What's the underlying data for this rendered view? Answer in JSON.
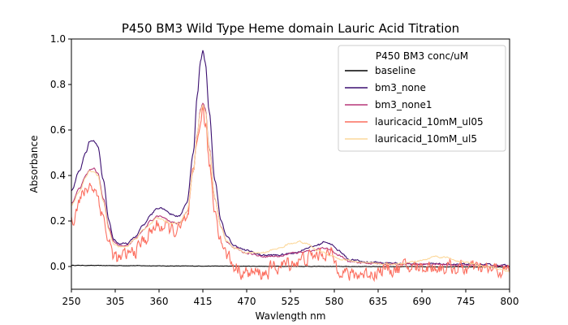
{
  "chart_data": {
    "type": "line",
    "title": "P450 BM3 Wild Type Heme domain Lauric Acid Titration",
    "xlabel": "Wavlength nm",
    "ylabel": "Absorbance",
    "xlim": [
      250,
      800
    ],
    "ylim": [
      -0.1,
      1.0
    ],
    "xticks": [
      "250",
      "305",
      "360",
      "415",
      "470",
      "525",
      "580",
      "635",
      "690",
      "745",
      "800"
    ],
    "yticks": [
      "0.0",
      "0.2",
      "0.4",
      "0.6",
      "0.8",
      "1.0"
    ],
    "legend": {
      "title": "P450 BM3 conc/uM",
      "placement": "top-right"
    },
    "series": [
      {
        "name": "baseline",
        "color": "#000000",
        "noise": 0.001,
        "points": [
          [
            250,
            0.005
          ],
          [
            300,
            0.004
          ],
          [
            400,
            0.002
          ],
          [
            500,
            0.001
          ],
          [
            600,
            0.0
          ],
          [
            700,
            -0.001
          ],
          [
            800,
            -0.002
          ]
        ]
      },
      {
        "name": "bm3_none",
        "color": "#3b0f70",
        "noise": 0.004,
        "points": [
          [
            250,
            0.33
          ],
          [
            260,
            0.42
          ],
          [
            268,
            0.5
          ],
          [
            273,
            0.55
          ],
          [
            278,
            0.55
          ],
          [
            283,
            0.53
          ],
          [
            290,
            0.38
          ],
          [
            297,
            0.2
          ],
          [
            303,
            0.12
          ],
          [
            310,
            0.1
          ],
          [
            320,
            0.1
          ],
          [
            330,
            0.13
          ],
          [
            340,
            0.18
          ],
          [
            350,
            0.23
          ],
          [
            357,
            0.255
          ],
          [
            362,
            0.26
          ],
          [
            368,
            0.25
          ],
          [
            375,
            0.23
          ],
          [
            385,
            0.22
          ],
          [
            395,
            0.28
          ],
          [
            403,
            0.5
          ],
          [
            408,
            0.75
          ],
          [
            412,
            0.9
          ],
          [
            415,
            0.95
          ],
          [
            418,
            0.9
          ],
          [
            423,
            0.68
          ],
          [
            430,
            0.38
          ],
          [
            438,
            0.2
          ],
          [
            445,
            0.13
          ],
          [
            455,
            0.09
          ],
          [
            470,
            0.07
          ],
          [
            490,
            0.05
          ],
          [
            510,
            0.05
          ],
          [
            530,
            0.06
          ],
          [
            550,
            0.085
          ],
          [
            560,
            0.095
          ],
          [
            568,
            0.11
          ],
          [
            575,
            0.1
          ],
          [
            585,
            0.07
          ],
          [
            600,
            0.03
          ],
          [
            620,
            0.02
          ],
          [
            650,
            0.015
          ],
          [
            680,
            0.012
          ],
          [
            720,
            0.01
          ],
          [
            760,
            0.008
          ],
          [
            800,
            0.005
          ]
        ]
      },
      {
        "name": "bm3_none1",
        "color": "#b73779",
        "noise": 0.004,
        "points": [
          [
            250,
            0.28
          ],
          [
            260,
            0.34
          ],
          [
            268,
            0.4
          ],
          [
            273,
            0.425
          ],
          [
            278,
            0.43
          ],
          [
            283,
            0.41
          ],
          [
            290,
            0.3
          ],
          [
            297,
            0.17
          ],
          [
            303,
            0.11
          ],
          [
            310,
            0.09
          ],
          [
            320,
            0.09
          ],
          [
            330,
            0.12
          ],
          [
            340,
            0.16
          ],
          [
            350,
            0.2
          ],
          [
            357,
            0.22
          ],
          [
            362,
            0.22
          ],
          [
            368,
            0.21
          ],
          [
            375,
            0.195
          ],
          [
            385,
            0.19
          ],
          [
            395,
            0.24
          ],
          [
            403,
            0.42
          ],
          [
            408,
            0.58
          ],
          [
            412,
            0.69
          ],
          [
            415,
            0.72
          ],
          [
            418,
            0.69
          ],
          [
            423,
            0.52
          ],
          [
            430,
            0.3
          ],
          [
            438,
            0.17
          ],
          [
            445,
            0.11
          ],
          [
            455,
            0.08
          ],
          [
            470,
            0.06
          ],
          [
            490,
            0.045
          ],
          [
            510,
            0.045
          ],
          [
            530,
            0.06
          ],
          [
            550,
            0.07
          ],
          [
            568,
            0.08
          ],
          [
            575,
            0.075
          ],
          [
            585,
            0.05
          ],
          [
            600,
            0.02
          ],
          [
            620,
            0.015
          ],
          [
            650,
            0.01
          ],
          [
            700,
            0.01
          ],
          [
            750,
            0.005
          ],
          [
            800,
            0.0
          ]
        ]
      },
      {
        "name": "lauricacid_10mM_ul05",
        "color": "#fc6e5f",
        "noise": 0.035,
        "points": [
          [
            250,
            0.2
          ],
          [
            260,
            0.29
          ],
          [
            268,
            0.33
          ],
          [
            273,
            0.36
          ],
          [
            278,
            0.35
          ],
          [
            283,
            0.31
          ],
          [
            290,
            0.22
          ],
          [
            297,
            0.1
          ],
          [
            303,
            0.05
          ],
          [
            310,
            0.03
          ],
          [
            320,
            0.05
          ],
          [
            330,
            0.07
          ],
          [
            340,
            0.11
          ],
          [
            350,
            0.15
          ],
          [
            357,
            0.18
          ],
          [
            362,
            0.18
          ],
          [
            368,
            0.17
          ],
          [
            375,
            0.16
          ],
          [
            385,
            0.16
          ],
          [
            395,
            0.2
          ],
          [
            403,
            0.39
          ],
          [
            408,
            0.55
          ],
          [
            412,
            0.65
          ],
          [
            415,
            0.68
          ],
          [
            418,
            0.63
          ],
          [
            423,
            0.45
          ],
          [
            430,
            0.25
          ],
          [
            438,
            0.12
          ],
          [
            445,
            0.05
          ],
          [
            455,
            0.0
          ],
          [
            470,
            -0.03
          ],
          [
            490,
            -0.03
          ],
          [
            510,
            0.0
          ],
          [
            530,
            0.02
          ],
          [
            550,
            0.04
          ],
          [
            568,
            0.06
          ],
          [
            575,
            0.05
          ],
          [
            585,
            0.0
          ],
          [
            600,
            -0.04
          ],
          [
            620,
            -0.03
          ],
          [
            650,
            -0.01
          ],
          [
            700,
            0.0
          ],
          [
            750,
            -0.01
          ],
          [
            800,
            -0.02
          ]
        ]
      },
      {
        "name": "lauricacid_10mM_ul5",
        "color": "#fcd89b",
        "noise": 0.004,
        "points": [
          [
            250,
            0.27
          ],
          [
            260,
            0.33
          ],
          [
            268,
            0.39
          ],
          [
            273,
            0.42
          ],
          [
            278,
            0.42
          ],
          [
            283,
            0.4
          ],
          [
            290,
            0.29
          ],
          [
            297,
            0.16
          ],
          [
            303,
            0.1
          ],
          [
            310,
            0.085
          ],
          [
            320,
            0.09
          ],
          [
            330,
            0.12
          ],
          [
            340,
            0.16
          ],
          [
            350,
            0.19
          ],
          [
            357,
            0.21
          ],
          [
            362,
            0.21
          ],
          [
            368,
            0.2
          ],
          [
            375,
            0.19
          ],
          [
            385,
            0.19
          ],
          [
            395,
            0.24
          ],
          [
            403,
            0.42
          ],
          [
            408,
            0.58
          ],
          [
            412,
            0.68
          ],
          [
            415,
            0.71
          ],
          [
            418,
            0.68
          ],
          [
            423,
            0.51
          ],
          [
            430,
            0.3
          ],
          [
            438,
            0.17
          ],
          [
            445,
            0.11
          ],
          [
            455,
            0.08
          ],
          [
            470,
            0.06
          ],
          [
            490,
            0.06
          ],
          [
            510,
            0.08
          ],
          [
            525,
            0.1
          ],
          [
            535,
            0.11
          ],
          [
            545,
            0.1
          ],
          [
            560,
            0.07
          ],
          [
            575,
            0.05
          ],
          [
            590,
            0.03
          ],
          [
            620,
            0.015
          ],
          [
            650,
            0.01
          ],
          [
            680,
            0.02
          ],
          [
            695,
            0.03
          ],
          [
            705,
            0.045
          ],
          [
            720,
            0.04
          ],
          [
            740,
            0.02
          ],
          [
            770,
            0.0
          ],
          [
            800,
            -0.02
          ]
        ]
      }
    ]
  }
}
